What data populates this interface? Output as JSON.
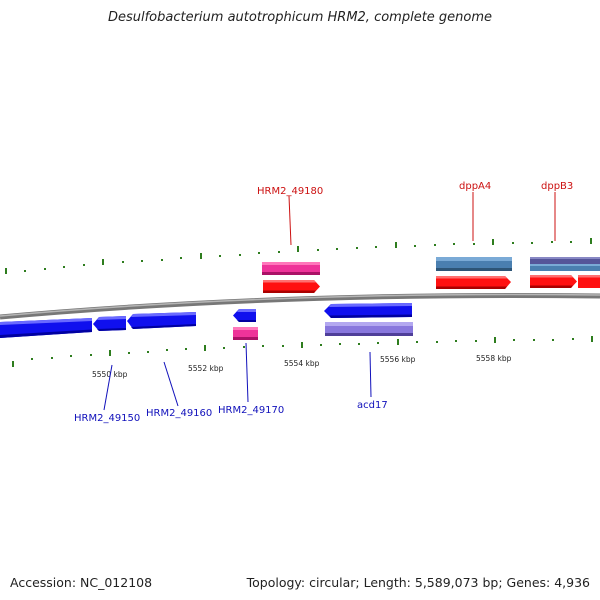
{
  "title": "Desulfobacterium autotrophicum HRM2, complete genome",
  "footer": {
    "accession": "Accession: NC_012108",
    "summary": "Topology: circular; Length: 5,589,073 bp; Genes: 4,936"
  },
  "colors": {
    "backbone": "#808080",
    "tick": "#2e7d1e",
    "label_forward": "#cc1111",
    "label_reverse": "#1111bb",
    "cds_forward": "#ff1010",
    "cds_reverse": "#1010ee",
    "rna_pink": "#ee3399",
    "steel_blue": "#4a7fb0",
    "lavender": "#8877dd",
    "slate_purple": "#555599"
  },
  "scale_labels": [
    "5550 kbp",
    "5552 kbp",
    "5554 kbp",
    "5556 kbp",
    "5558 kbp"
  ],
  "gene_labels": [
    {
      "text": "HRM2_49180",
      "strand": "forward"
    },
    {
      "text": "dppA4",
      "strand": "forward"
    },
    {
      "text": "dppB3",
      "strand": "forward"
    },
    {
      "text": "HRM2_49150",
      "strand": "reverse"
    },
    {
      "text": "HRM2_49160",
      "strand": "reverse"
    },
    {
      "text": "HRM2_49170",
      "strand": "reverse"
    },
    {
      "text": "acd17",
      "strand": "reverse"
    }
  ]
}
